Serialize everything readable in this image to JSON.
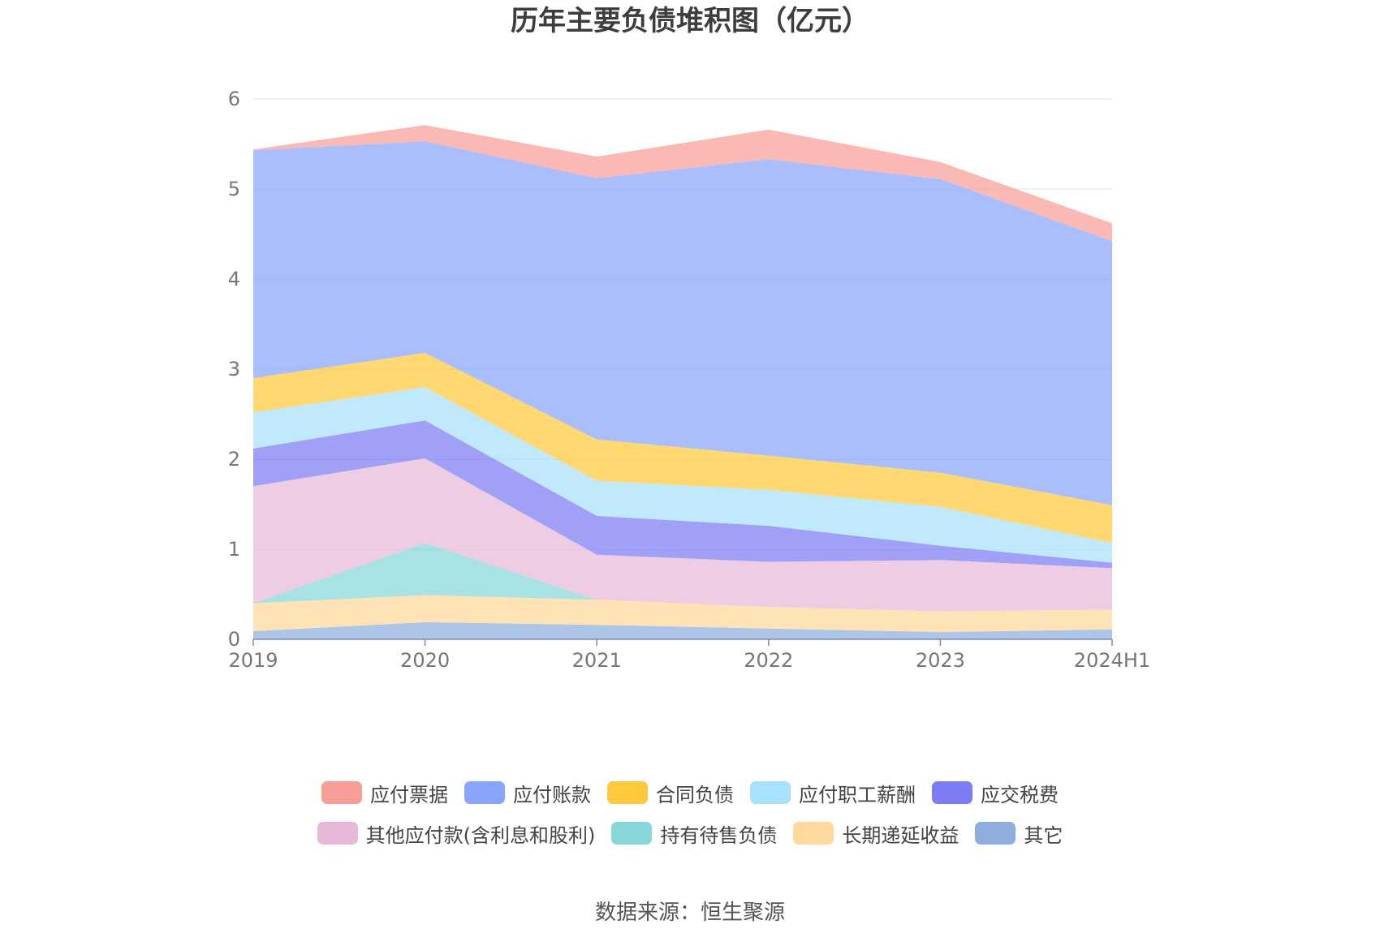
{
  "chart_title": "历年主要负债堆积图（亿元）",
  "source_note": "数据来源：恒生聚源",
  "chart_data": {
    "type": "area",
    "stacked": true,
    "title": "历年主要负债堆积图（亿元）",
    "xlabel": "",
    "ylabel": "",
    "categories": [
      "2019",
      "2020",
      "2021",
      "2022",
      "2023",
      "2024H1"
    ],
    "ylim": [
      0,
      6
    ],
    "yticks": [
      0,
      1,
      2,
      3,
      4,
      5,
      6
    ],
    "grid": true,
    "legend_position": "bottom",
    "series": [
      {
        "name": "其它",
        "color": "#8eaedd",
        "values": [
          0.09,
          0.19,
          0.16,
          0.12,
          0.08,
          0.11
        ]
      },
      {
        "name": "长期递延收益",
        "color": "#ffd89b",
        "values": [
          0.31,
          0.3,
          0.28,
          0.24,
          0.23,
          0.22
        ]
      },
      {
        "name": "持有待售负债",
        "color": "#86d7d9",
        "values": [
          0,
          0.58,
          0,
          0,
          0,
          0
        ]
      },
      {
        "name": "其他应付款(含利息和股利)",
        "color": "#e7b8d8",
        "values": [
          1.3,
          0.94,
          0.5,
          0.5,
          0.57,
          0.46
        ]
      },
      {
        "name": "应交税费",
        "color": "#7c7cf4",
        "values": [
          0.42,
          0.42,
          0.43,
          0.4,
          0.16,
          0.06
        ]
      },
      {
        "name": "应付职工薪酬",
        "color": "#a7e1fb",
        "values": [
          0.4,
          0.37,
          0.39,
          0.4,
          0.43,
          0.22
        ]
      },
      {
        "name": "合同负债",
        "color": "#ffc93c",
        "values": [
          0.38,
          0.38,
          0.46,
          0.38,
          0.38,
          0.42
        ]
      },
      {
        "name": "应付账款",
        "color": "#89a5fb",
        "values": [
          2.53,
          2.35,
          2.9,
          3.29,
          3.26,
          2.93
        ]
      },
      {
        "name": "应付票据",
        "color": "#f89e97",
        "values": [
          0.01,
          0.18,
          0.24,
          0.33,
          0.19,
          0.2
        ]
      }
    ]
  },
  "legend": {
    "rows": [
      [
        {
          "label": "应付票据",
          "color": "#f89e97"
        },
        {
          "label": "应付账款",
          "color": "#89a5fb"
        },
        {
          "label": "合同负债",
          "color": "#ffc93c"
        },
        {
          "label": "应付职工薪酬",
          "color": "#a7e1fb"
        },
        {
          "label": "应交税费",
          "color": "#7c7cf4"
        }
      ],
      [
        {
          "label": "其他应付款(含利息和股利)",
          "color": "#e7b8d8"
        },
        {
          "label": "持有待售负债",
          "color": "#86d7d9"
        },
        {
          "label": "长期递延收益",
          "color": "#ffd89b"
        },
        {
          "label": "其它",
          "color": "#8eaedd"
        }
      ]
    ]
  }
}
